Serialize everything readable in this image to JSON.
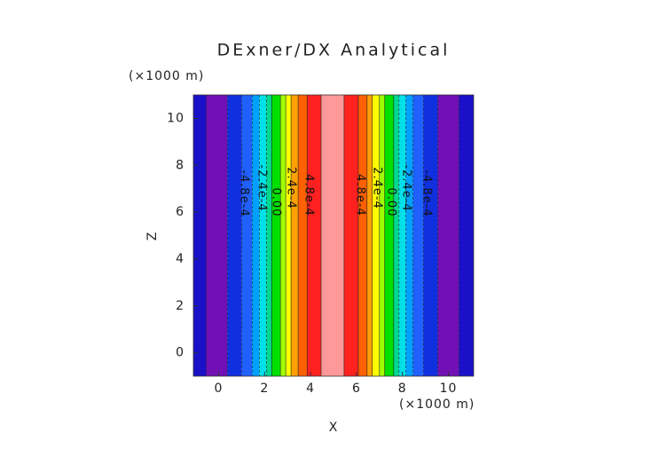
{
  "chart_data": {
    "type": "contourf",
    "title": "DExner/DX Analytical",
    "x_label": "X",
    "y_label": "Z",
    "x_unit": "(×1000 m)",
    "y_unit": "(×1000 m)",
    "xlim": [
      -1.1,
      11.1
    ],
    "ylim": [
      -1,
      11
    ],
    "xticks": [
      0,
      2,
      4,
      6,
      8,
      10
    ],
    "yticks": [
      0,
      2,
      4,
      6,
      8,
      10
    ],
    "band_edges": [
      -1.1,
      -0.54,
      0.38,
      1.0,
      1.46,
      1.77,
      2.08,
      2.31,
      2.69,
      2.92,
      3.15,
      3.46,
      3.85,
      4.46,
      5.46,
      6.08,
      6.46,
      6.69,
      7.0,
      7.23,
      7.62,
      7.85,
      8.15,
      8.46,
      8.92,
      9.54,
      10.46,
      11.1
    ],
    "band_colors": [
      "#1a10c8",
      "#7010b4",
      "#1030e0",
      "#2060ff",
      "#00a0ff",
      "#00e0e8",
      "#00d890",
      "#00e000",
      "#a0ff00",
      "#ffff00",
      "#ffa000",
      "#ff6000",
      "#ff2020",
      "#ff9898",
      "#ff2020",
      "#ff6000",
      "#ffa000",
      "#ffff00",
      "#a0ff00",
      "#00e000",
      "#00d890",
      "#00e0e8",
      "#00a0ff",
      "#2060ff",
      "#1030e0",
      "#7010b4",
      "#1a10c8"
    ],
    "contour_labels": [
      "-4.8e-4",
      "-2.4e-4",
      "0.00",
      "2.4e-4",
      "4.8e-4",
      "4.8e-4",
      "2.4e-4",
      "0.00",
      "-2.4e-4",
      "-4.8e-4"
    ]
  }
}
